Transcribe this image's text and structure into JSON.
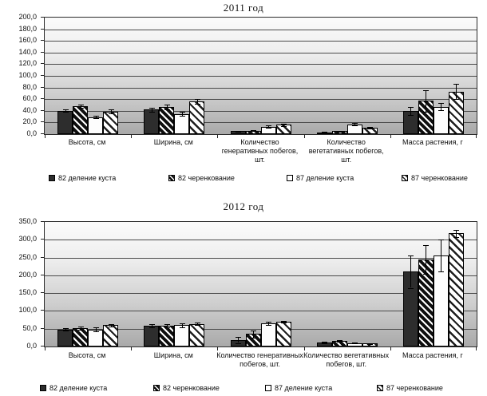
{
  "colors": {
    "bar_solid": "#2d2d2d",
    "hatch_stripe": "#0e0e0e",
    "plot_gradient_top": "#fbfbfb",
    "plot_gradient_bottom": "#a9a9a9",
    "gridline": "#4a4a4a"
  },
  "chart_data": [
    {
      "type": "bar",
      "title": "2011 год",
      "ylim": [
        0,
        200
      ],
      "ytick_step": 20,
      "ytick_labels": [
        "0,0",
        "20,0",
        "40,0",
        "60,0",
        "80,0",
        "100,0",
        "120,0",
        "140,0",
        "160,0",
        "180,0",
        "200,0"
      ],
      "grid": true,
      "legend_position": "bottom",
      "error_bars": true,
      "categories": [
        "Высота, см",
        "Ширина, см",
        "Количество генеративных побегов, шт.",
        "Количество вегетативных побегов, шт.",
        "Масса растения, г"
      ],
      "series": [
        {
          "name": "82 деление куста",
          "pattern": "solid",
          "values": [
            40,
            42,
            5,
            3,
            40
          ],
          "errors": [
            2,
            3,
            1,
            1,
            7
          ]
        },
        {
          "name": "82 черенкование",
          "pattern": "hatch-bold",
          "values": [
            48,
            47,
            6,
            5,
            57
          ],
          "errors": [
            3,
            4,
            1,
            1,
            18
          ]
        },
        {
          "name": "87 деление куста",
          "pattern": "white",
          "values": [
            29,
            35,
            13,
            17,
            47
          ],
          "errors": [
            2,
            3,
            2,
            2,
            6
          ]
        },
        {
          "name": "87 черенкование",
          "pattern": "hatch-light",
          "values": [
            39,
            56,
            16,
            11,
            73
          ],
          "errors": [
            3,
            4,
            2,
            2,
            13
          ]
        }
      ]
    },
    {
      "type": "bar",
      "title": "2012 год",
      "ylim": [
        0,
        350
      ],
      "ytick_step": 50,
      "ytick_labels": [
        "0,0",
        "50,0",
        "100,0",
        "150,0",
        "200,0",
        "250,0",
        "300,0",
        "350,0"
      ],
      "grid": true,
      "legend_position": "bottom",
      "error_bars": true,
      "categories": [
        "Высота, см",
        "Ширина, см",
        "Количество генеративных побегов, шт.",
        "Количество вегетативных побегов, шт.",
        "Масса растения, г"
      ],
      "series": [
        {
          "name": "82 деление куста",
          "pattern": "solid",
          "values": [
            48,
            59,
            18,
            12,
            210
          ],
          "errors": [
            3,
            5,
            8,
            2,
            45
          ]
        },
        {
          "name": "82 черенкование",
          "pattern": "hatch-bold",
          "values": [
            52,
            58,
            35,
            15,
            245
          ],
          "errors": [
            4,
            4,
            10,
            2,
            40
          ]
        },
        {
          "name": "87 деление куста",
          "pattern": "white",
          "values": [
            48,
            60,
            65,
            10,
            255
          ],
          "errors": [
            6,
            6,
            4,
            2,
            45
          ]
        },
        {
          "name": "87 черенкование",
          "pattern": "hatch-light",
          "values": [
            60,
            64,
            70,
            8,
            318
          ],
          "errors": [
            4,
            4,
            3,
            2,
            10
          ]
        }
      ]
    }
  ]
}
